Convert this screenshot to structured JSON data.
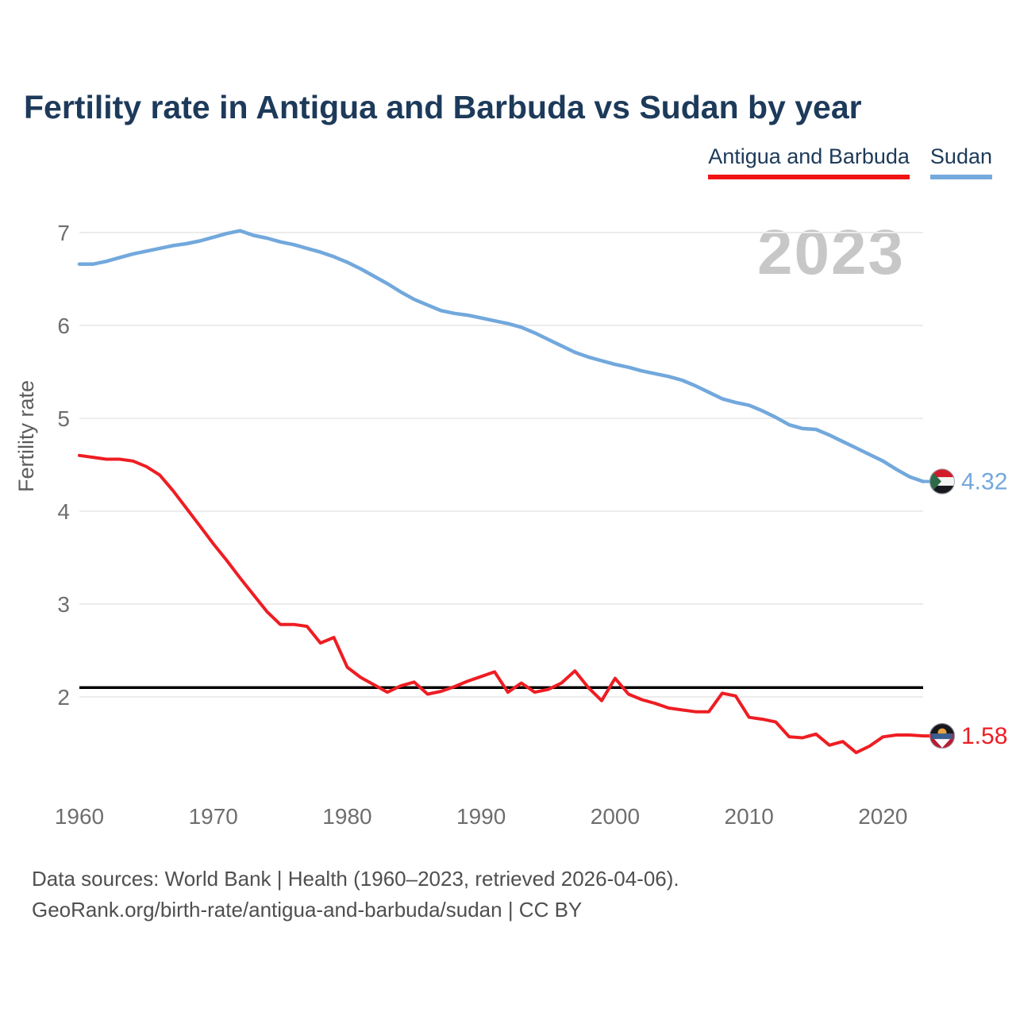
{
  "title": "Fertility rate in Antigua and Barbuda vs Sudan by year",
  "watermark": "2023",
  "legend": {
    "items": [
      {
        "label": "Antigua and Barbuda",
        "color": "#f01414"
      },
      {
        "label": "Sudan",
        "color": "#74aadd"
      }
    ]
  },
  "y_axis": {
    "label": "Fertility rate",
    "ticks": [
      7,
      6,
      5,
      4,
      3,
      2
    ]
  },
  "x_axis": {
    "ticks": [
      1960,
      1970,
      1980,
      1990,
      2000,
      2010,
      2020
    ]
  },
  "reference_line": {
    "value": 2.1,
    "color": "#000000"
  },
  "end_labels": {
    "sudan": {
      "value": "4.32",
      "flag": "sudan-flag",
      "color": "#72a8dc"
    },
    "antigua_and_barbuda": {
      "value": "1.58",
      "flag": "antigua-and-barbuda-flag",
      "color": "#ee1d23"
    }
  },
  "footer": {
    "line1": "Data sources: World Bank | Health (1960–2023, retrieved 2026-04-06).",
    "line2": "GeoRank.org/birth-rate/antigua-and-barbuda/sudan | CC BY"
  },
  "chart_data": {
    "type": "line",
    "title": "Fertility rate in Antigua and Barbuda vs Sudan by year",
    "xlabel": "",
    "ylabel": "Fertility rate",
    "xlim": [
      1960,
      2023
    ],
    "ylim": [
      1.2,
      7.3
    ],
    "grid": true,
    "legend_position": "top-right",
    "x": [
      1960,
      1961,
      1962,
      1963,
      1964,
      1965,
      1966,
      1967,
      1968,
      1969,
      1970,
      1971,
      1972,
      1973,
      1974,
      1975,
      1976,
      1977,
      1978,
      1979,
      1980,
      1981,
      1982,
      1983,
      1984,
      1985,
      1986,
      1987,
      1988,
      1989,
      1990,
      1991,
      1992,
      1993,
      1994,
      1995,
      1996,
      1997,
      1998,
      1999,
      2000,
      2001,
      2002,
      2003,
      2004,
      2005,
      2006,
      2007,
      2008,
      2009,
      2010,
      2011,
      2012,
      2013,
      2014,
      2015,
      2016,
      2017,
      2018,
      2019,
      2020,
      2021,
      2022,
      2023
    ],
    "series": [
      {
        "name": "Antigua and Barbuda",
        "color": "#ee1d23",
        "final_value": 1.58,
        "values": [
          4.6,
          4.58,
          4.56,
          4.56,
          4.54,
          4.48,
          4.39,
          4.22,
          4.03,
          3.84,
          3.65,
          3.47,
          3.28,
          3.1,
          2.92,
          2.78,
          2.78,
          2.76,
          2.58,
          2.64,
          2.32,
          2.21,
          2.13,
          2.05,
          2.12,
          2.16,
          2.03,
          2.06,
          2.11,
          2.17,
          2.22,
          2.27,
          2.05,
          2.15,
          2.05,
          2.08,
          2.15,
          2.28,
          2.1,
          1.96,
          2.2,
          2.03,
          1.97,
          1.93,
          1.88,
          1.86,
          1.84,
          1.84,
          2.04,
          2.01,
          1.78,
          1.76,
          1.73,
          1.57,
          1.56,
          1.6,
          1.48,
          1.52,
          1.4,
          1.47,
          1.57,
          1.59,
          1.59,
          1.58
        ]
      },
      {
        "name": "Sudan",
        "color": "#72a8dc",
        "final_value": 4.32,
        "values": [
          6.66,
          6.66,
          6.69,
          6.73,
          6.77,
          6.8,
          6.83,
          6.86,
          6.88,
          6.91,
          6.95,
          6.99,
          7.02,
          6.97,
          6.94,
          6.9,
          6.87,
          6.83,
          6.79,
          6.74,
          6.68,
          6.61,
          6.53,
          6.45,
          6.36,
          6.28,
          6.22,
          6.16,
          6.13,
          6.11,
          6.08,
          6.05,
          6.02,
          5.98,
          5.92,
          5.85,
          5.78,
          5.71,
          5.66,
          5.62,
          5.58,
          5.55,
          5.51,
          5.48,
          5.45,
          5.41,
          5.35,
          5.28,
          5.21,
          5.17,
          5.14,
          5.08,
          5.01,
          4.93,
          4.89,
          4.88,
          4.82,
          4.75,
          4.68,
          4.61,
          4.54,
          4.45,
          4.37,
          4.32
        ]
      }
    ],
    "reference_line": 2.1
  }
}
